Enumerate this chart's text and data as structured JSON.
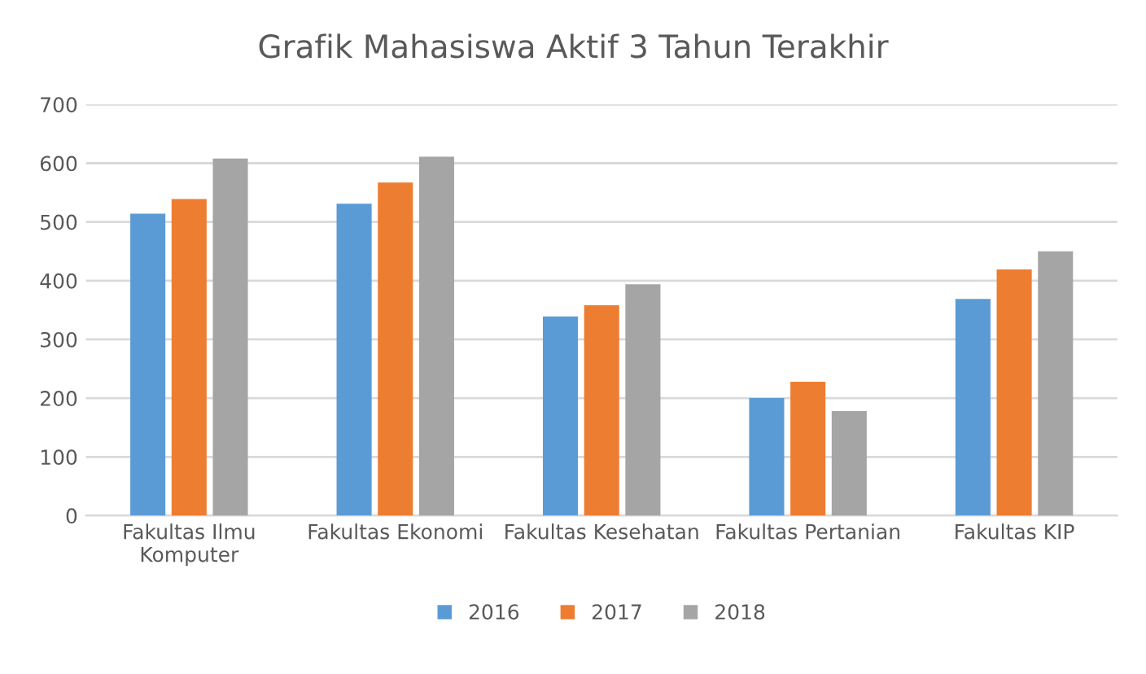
{
  "chart_data": {
    "type": "bar",
    "title": "Grafik Mahasiswa Aktif 3 Tahun Terakhir",
    "categories": [
      "Fakultas Ilmu\nKomputer",
      "Fakultas Ekonomi",
      "Fakultas Kesehatan",
      "Fakultas Pertanian",
      "Fakultas KIP"
    ],
    "series": [
      {
        "name": "2016",
        "color": "#5b9bd5",
        "values": [
          514,
          531,
          339,
          200,
          369
        ]
      },
      {
        "name": "2017",
        "color": "#ed7d31",
        "values": [
          539,
          567,
          358,
          228,
          419
        ]
      },
      {
        "name": "2018",
        "color": "#a5a5a5",
        "values": [
          608,
          611,
          394,
          178,
          450
        ]
      }
    ],
    "ylim": [
      0,
      700
    ],
    "yticks": [
      0,
      100,
      200,
      300,
      400,
      500,
      600,
      700
    ],
    "grid": "y",
    "legend": "bottom"
  }
}
